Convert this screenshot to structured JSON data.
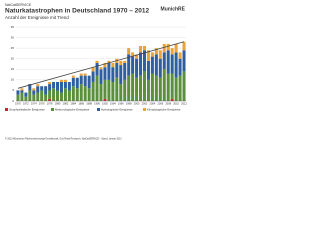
{
  "header": {
    "source": "NatCatSERVICE",
    "logo": "MunichRE"
  },
  "chart_data": {
    "type": "bar",
    "stacked": true,
    "title": "Naturkatastrophen in Deutschland 1970 – 2012",
    "subtitle": "Anzahl der Ereignisse mit Trend",
    "categories": [
      "1970",
      null,
      "1972",
      null,
      "1974",
      null,
      "1976",
      null,
      "1978",
      null,
      "1980",
      null,
      "1982",
      null,
      "1984",
      null,
      "1986",
      null,
      "1988",
      null,
      "1990",
      null,
      "1992",
      null,
      "1994",
      null,
      "1996",
      null,
      "1998",
      null,
      "2000",
      null,
      "2002",
      null,
      "2004",
      null,
      "2006",
      null,
      "2008",
      null,
      "2010",
      null,
      "2012"
    ],
    "series": [
      {
        "name": "Geophysikalische Ereignisse",
        "color": "#c0282d",
        "values": [
          0,
          0,
          0,
          0,
          0,
          0,
          0,
          0,
          1,
          0,
          0,
          0,
          0,
          0,
          0,
          0,
          0,
          0,
          0,
          0,
          0,
          0,
          1,
          0,
          0,
          0,
          0,
          0,
          0,
          0,
          0,
          0,
          0,
          0,
          0,
          0,
          0,
          0,
          0,
          1,
          0,
          0,
          0
        ]
      },
      {
        "name": "Meteorologische Ereignisse",
        "color": "#5a8f3c",
        "values": [
          3,
          4,
          2,
          5,
          3,
          4,
          5,
          3,
          4,
          6,
          5,
          4,
          6,
          5,
          7,
          6,
          8,
          7,
          6,
          9,
          12,
          8,
          9,
          10,
          9,
          11,
          8,
          10,
          12,
          13,
          11,
          12,
          14,
          10,
          13,
          12,
          11,
          15,
          13,
          12,
          11,
          12,
          14
        ]
      },
      {
        "name": "Hydrologische Ereignisse",
        "color": "#2f5f9e",
        "values": [
          2,
          1,
          2,
          3,
          2,
          3,
          2,
          4,
          3,
          3,
          4,
          5,
          3,
          4,
          4,
          5,
          4,
          5,
          6,
          5,
          6,
          7,
          6,
          8,
          7,
          7,
          9,
          8,
          10,
          8,
          9,
          11,
          10,
          9,
          8,
          10,
          9,
          8,
          11,
          9,
          12,
          8,
          10
        ]
      },
      {
        "name": "Klimatologische Ereignisse",
        "color": "#e8a33a",
        "values": [
          0,
          1,
          0,
          0,
          1,
          1,
          0,
          0,
          1,
          0,
          0,
          1,
          1,
          0,
          1,
          0,
          1,
          1,
          0,
          2,
          1,
          1,
          2,
          1,
          2,
          2,
          2,
          1,
          3,
          2,
          2,
          3,
          2,
          5,
          2,
          3,
          4,
          4,
          3,
          3,
          4,
          3,
          4
        ]
      }
    ],
    "trend": {
      "color": "#444444",
      "values": [
        6,
        28
      ]
    },
    "ylim": [
      0,
      35
    ],
    "yticks": [
      0,
      5,
      10,
      15,
      20,
      25,
      30,
      35
    ],
    "grid": true,
    "footer": "© 2013 Münchener Rückversicherungs-Gesellschaft, Geo Risks Research, NatCatSERVICE – Stand: Januar 2013"
  }
}
